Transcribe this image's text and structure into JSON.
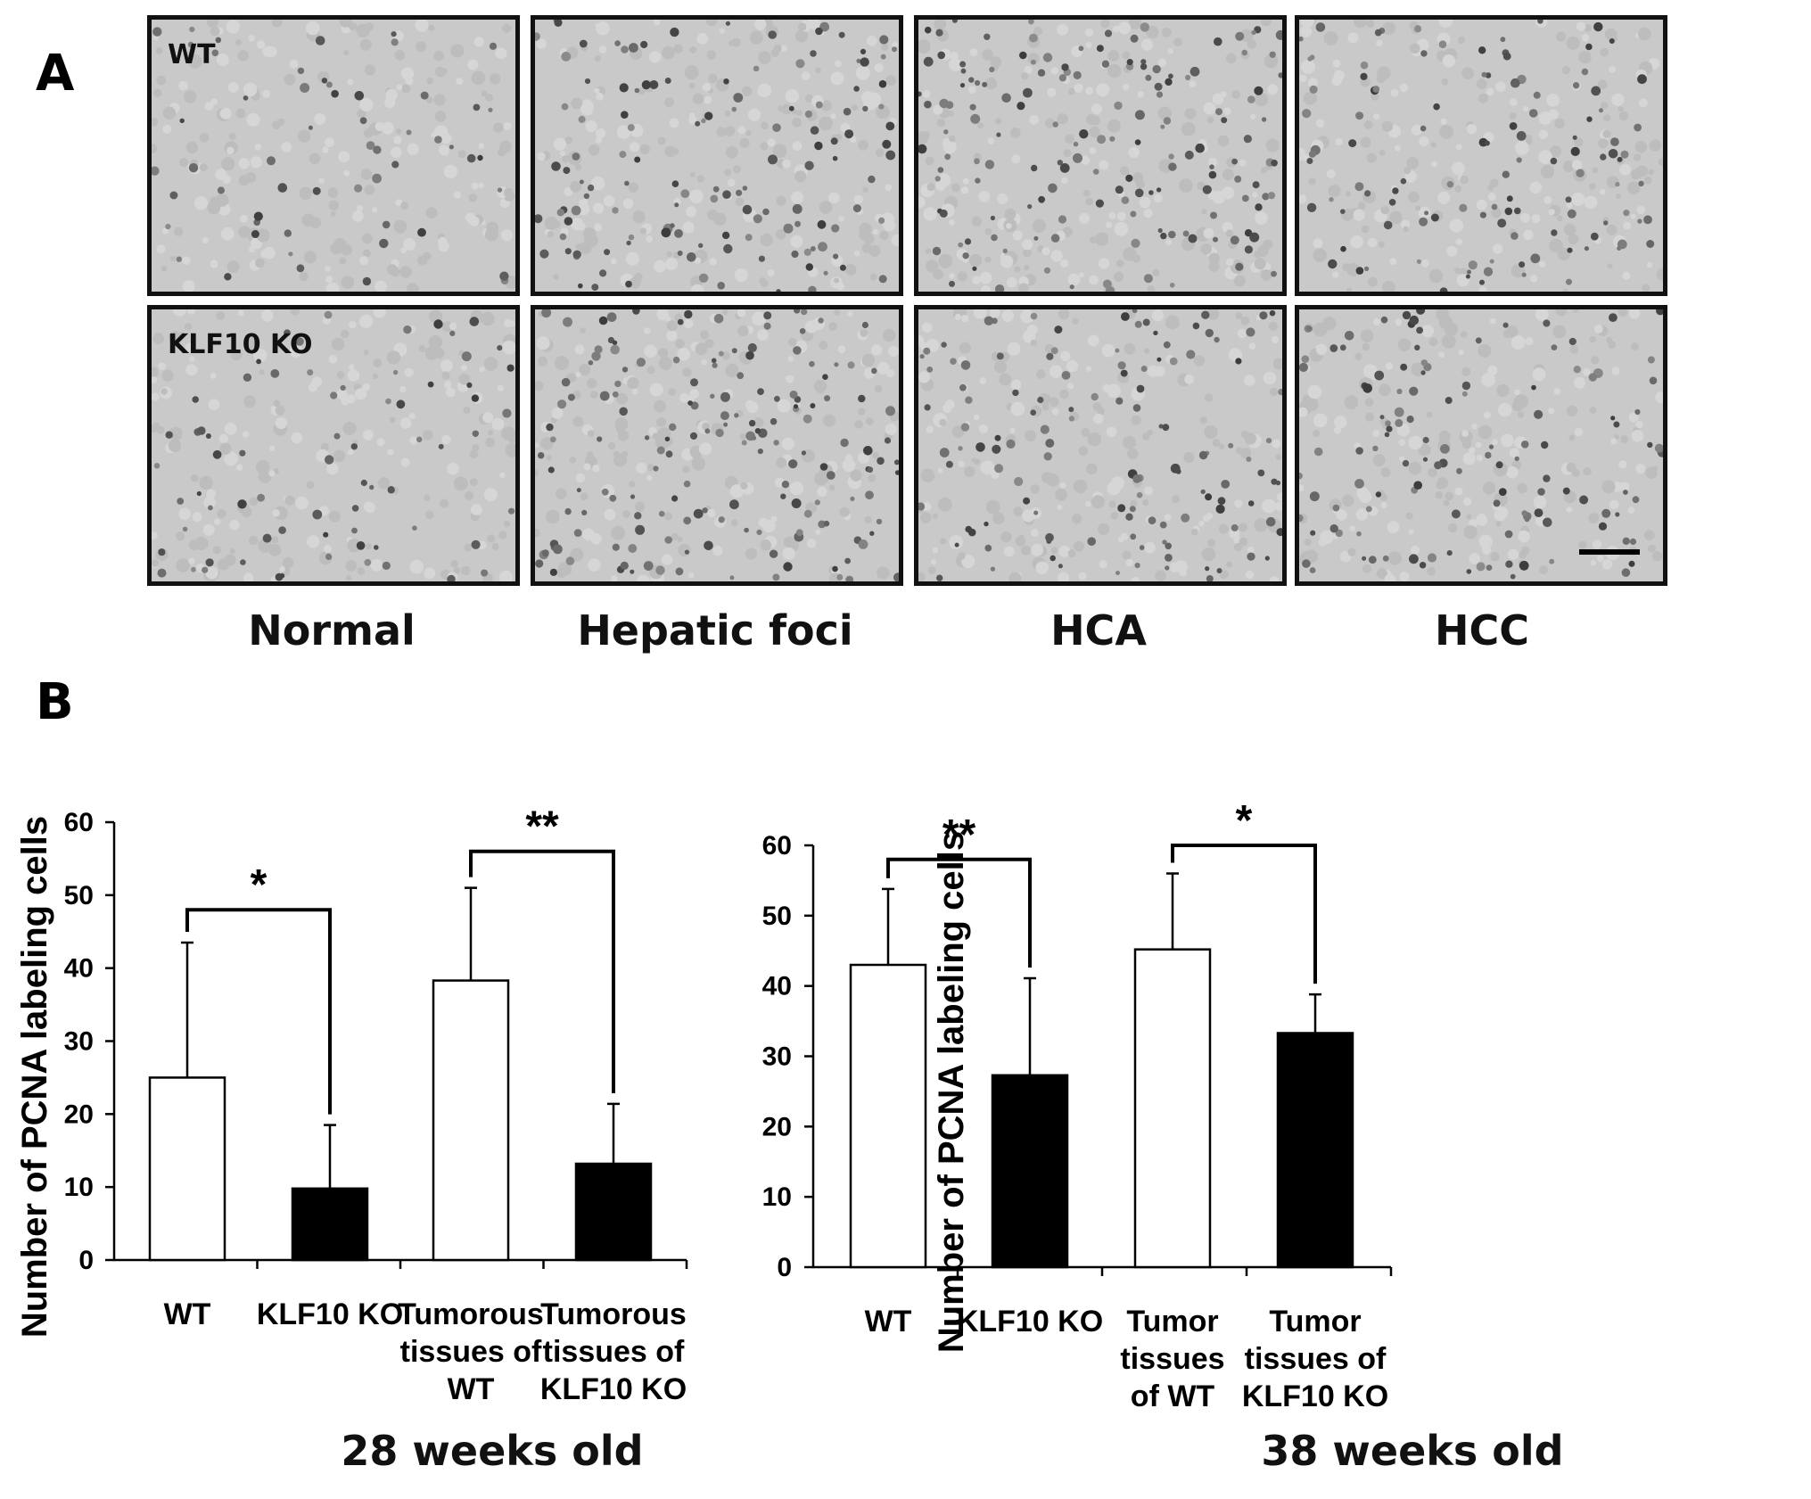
{
  "panel_a": {
    "letter": "A",
    "row_labels": [
      "WT",
      "KLF10 KO"
    ],
    "column_labels": [
      "Normal",
      "Hepatic foci",
      "HCA",
      "HCC"
    ]
  },
  "panel_b": {
    "letter": "B",
    "age_labels": [
      "28 weeks old",
      "38 weeks old"
    ]
  },
  "chart_data": [
    {
      "type": "bar",
      "ylabel": "Number of PCNA labeling cells",
      "xlabel": "28 weeks old",
      "ylim": [
        0,
        60
      ],
      "yticks": [
        0,
        10,
        20,
        30,
        40,
        50,
        60
      ],
      "categories": [
        [
          "WT"
        ],
        [
          "KLF10 KO"
        ],
        [
          "Tumorous",
          "tissues of",
          "WT"
        ],
        [
          "Tumorous",
          "tissues of",
          "KLF10 KO"
        ]
      ],
      "values": [
        25,
        9.8,
        38.3,
        13.2
      ],
      "errors": [
        18.5,
        8.7,
        12.7,
        8.2
      ],
      "fills": [
        "#ffffff",
        "#000000",
        "#ffffff",
        "#000000"
      ],
      "significance": [
        {
          "from": 0,
          "to": 1,
          "label": "*",
          "level": 48
        },
        {
          "from": 2,
          "to": 3,
          "label": "**",
          "level": 56
        }
      ]
    },
    {
      "type": "bar",
      "ylabel": "Number of PCNA labeling cells",
      "xlabel": "38 weeks old",
      "ylim": [
        0,
        60
      ],
      "yticks": [
        0,
        10,
        20,
        30,
        40,
        50,
        60
      ],
      "categories": [
        [
          "WT"
        ],
        [
          "KLF10 KO"
        ],
        [
          "Tumor",
          "tissues",
          "of WT"
        ],
        [
          "Tumor",
          "tissues of",
          "KLF10 KO"
        ]
      ],
      "values": [
        43,
        27.3,
        45.2,
        33.3
      ],
      "errors": [
        10.8,
        13.8,
        10.8,
        5.5
      ],
      "fills": [
        "#ffffff",
        "#000000",
        "#ffffff",
        "#000000"
      ],
      "significance": [
        {
          "from": 0,
          "to": 1,
          "label": "**",
          "level": 58
        },
        {
          "from": 2,
          "to": 3,
          "label": "*",
          "level": 60
        }
      ]
    }
  ]
}
